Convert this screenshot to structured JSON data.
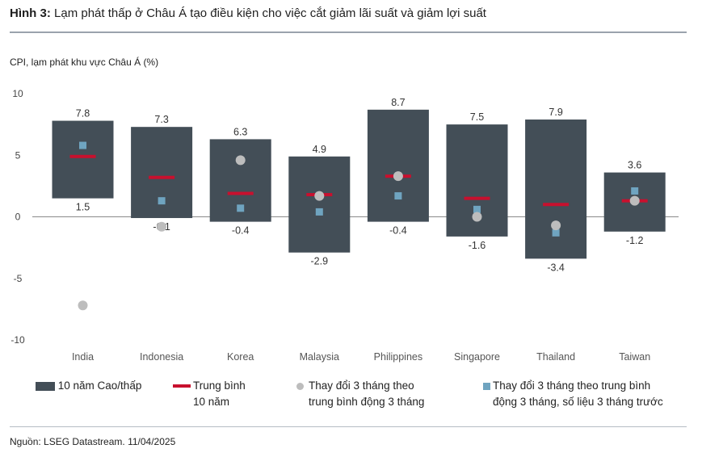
{
  "header": {
    "title_bold": "Hình 3:",
    "title_rest": " Lạm phát thấp ở Châu Á tạo điều kiện cho việc cắt giảm lãi suất và giảm lợi suất"
  },
  "footer": {
    "source": "Nguồn: LSEG Datastream. 11/04/2025"
  },
  "legend": {
    "range": "10 năm Cao/thấp",
    "mean_line1": "Trung bình",
    "mean_line2": "10 năm",
    "dot_line1": "Thay đổi 3 tháng theo",
    "dot_line2": "trung bình động 3 tháng",
    "sq_line1": "Thay đổi 3 tháng theo trung bình",
    "sq_line2": "động 3 tháng, số liệu 3 tháng trước"
  },
  "chart_data": {
    "type": "bar",
    "ylabel": "CPI, lạm phát khu vực Châu Á (%)",
    "ylim": [
      -10,
      10
    ],
    "yticks": [
      10,
      5,
      0,
      -5,
      -10
    ],
    "categories": [
      "India",
      "Indonesia",
      "Korea",
      "Malaysia",
      "Philippines",
      "Singapore",
      "Thailand",
      "Taiwan"
    ],
    "high": [
      7.8,
      7.3,
      6.3,
      4.9,
      8.7,
      7.5,
      7.9,
      3.6
    ],
    "low": [
      1.5,
      -0.1,
      -0.4,
      -2.9,
      -0.4,
      -1.6,
      -3.4,
      -1.2
    ],
    "high_labels": [
      "7.8",
      "7.3",
      "6.3",
      "4.9",
      "8.7",
      "7.5",
      "7.9",
      "3.6"
    ],
    "low_labels": [
      "1.5",
      "-0.1",
      "-0.4",
      "-2.9",
      "-0.4",
      "-1.6",
      "-3.4",
      "-1.2"
    ],
    "mean_10y": [
      4.9,
      3.2,
      1.9,
      1.8,
      3.3,
      1.5,
      1.0,
      1.3
    ],
    "change_3m": [
      -7.2,
      -0.8,
      4.6,
      1.7,
      3.3,
      0.0,
      -0.7,
      1.3
    ],
    "change_3m_prev": [
      5.8,
      1.3,
      0.7,
      0.4,
      1.7,
      0.6,
      -1.3,
      2.1
    ],
    "grid": false,
    "colors": {
      "range": "#434e57",
      "mean": "#c8102e",
      "dot": "#bdbdbd",
      "square": "#6fa4c0"
    }
  }
}
